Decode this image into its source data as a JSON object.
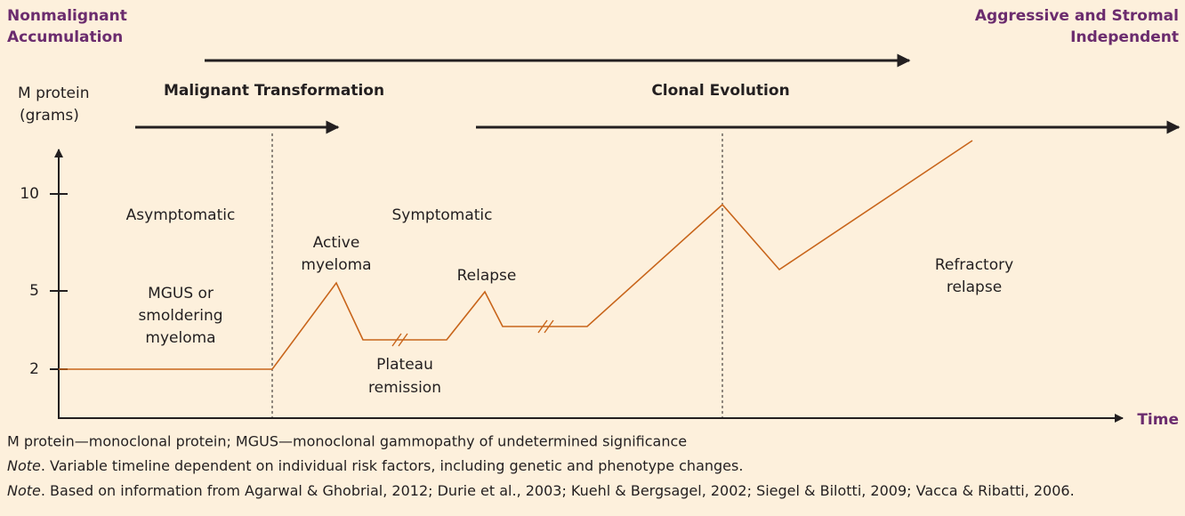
{
  "header": {
    "left": [
      "Nonmalignant",
      "Accumulation"
    ],
    "right": [
      "Aggressive and Stromal",
      "Independent"
    ]
  },
  "phases": {
    "transformation": "Malignant Transformation",
    "evolution": "Clonal Evolution"
  },
  "axis": {
    "y_label": [
      "M protein",
      "(grams)"
    ],
    "y_ticks": [
      "10",
      "5",
      "2"
    ],
    "x_label": "Time"
  },
  "labels": {
    "asymptomatic": "Asymptomatic",
    "symptomatic": "Symptomatic",
    "active": [
      "Active",
      "myeloma"
    ],
    "mgus": [
      "MGUS or",
      "smoldering",
      "myeloma"
    ],
    "relapse": "Relapse",
    "plateau": [
      "Plateau",
      "remission"
    ],
    "refractory": [
      "Refractory",
      "relapse"
    ]
  },
  "notes": [
    {
      "text": "M protein—monoclonal protein; MGUS—monoclonal gammopathy of undetermined significance"
    },
    {
      "prefix": "Note",
      "text": ". Variable timeline dependent on individual risk factors, including genetic and phenotype changes."
    },
    {
      "prefix": "Note",
      "text": ". Based on information from Agarwal & Ghobrial, 2012; Durie et al., 2003; Kuehl & Bergsagel, 2002; Siegel & Bilotti, 2009; Vacca & Ribatti, 2006."
    }
  ]
}
